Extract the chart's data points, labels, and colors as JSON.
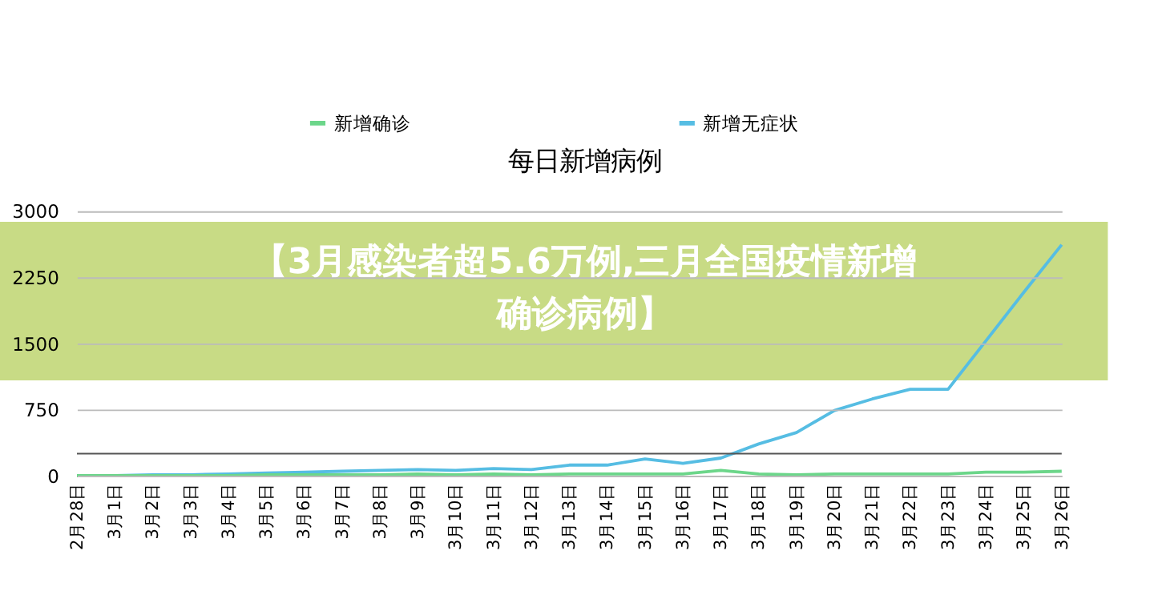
{
  "chart_data": {
    "type": "line",
    "title": "每日新增病例",
    "categories": [
      "2月28日",
      "3月1日",
      "3月2日",
      "3月3日",
      "3月4日",
      "3月5日",
      "3月6日",
      "3月7日",
      "3月8日",
      "3月9日",
      "3月10日",
      "3月11日",
      "3月12日",
      "3月13日",
      "3月14日",
      "3月15日",
      "3月16日",
      "3月17日",
      "3月18日",
      "3月19日",
      "3月20日",
      "3月21日",
      "3月22日",
      "3月23日",
      "3月24日",
      "3月25日",
      "3月26日"
    ],
    "series": [
      {
        "name": "新增确诊",
        "color": "#6cd68a",
        "values": [
          0,
          0,
          0,
          0,
          0,
          10,
          10,
          10,
          10,
          20,
          10,
          20,
          10,
          20,
          20,
          20,
          20,
          60,
          20,
          10,
          20,
          20,
          20,
          20,
          40,
          40,
          50
        ]
      },
      {
        "name": "新增无症状",
        "color": "#56bde3",
        "values": [
          0,
          0,
          10,
          10,
          20,
          30,
          40,
          50,
          60,
          70,
          60,
          80,
          70,
          120,
          120,
          190,
          140,
          200,
          360,
          490,
          740,
          870,
          980,
          980,
          1530,
          2080,
          2620
        ]
      }
    ],
    "ylim": [
      0,
      3000
    ],
    "yticks": [
      0,
      750,
      1500,
      2250,
      3000
    ],
    "grid": "y",
    "legend": "top",
    "ref_lines": [
      {
        "axis": "y",
        "value": 250,
        "color": "#555555"
      }
    ],
    "bands": [
      {
        "axis": "y",
        "from": 1080,
        "to": 2880,
        "color": "#b5cf5c",
        "label": "【3月感染者超5.6万例,三月全国疫情新增确诊病例】"
      }
    ]
  }
}
